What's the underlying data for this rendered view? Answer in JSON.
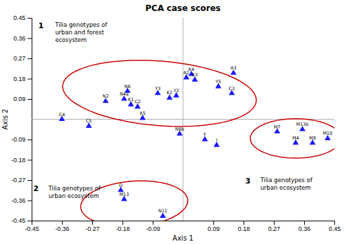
{
  "chart_data": {
    "type": "scatter",
    "title": "PCA case scores",
    "x_label": "Axis 1",
    "y_label": "Axis 2",
    "xlim": [
      -0.45,
      0.45
    ],
    "ylim": [
      -0.45,
      0.45
    ],
    "xticks": [
      -0.45,
      -0.36,
      -0.27,
      -0.18,
      -0.09,
      0.09,
      0.18,
      0.27,
      0.36,
      0.45
    ],
    "yticks": [
      -0.45,
      -0.36,
      -0.27,
      -0.18,
      -0.09,
      0.09,
      0.18,
      0.27,
      0.36,
      0.45
    ],
    "series": [
      {
        "color": "#1a1aff",
        "marker": "triangle",
        "labels": [
          "C4",
          "C5",
          "N2",
          "N4a",
          "N6",
          "K1",
          "C2",
          "K5",
          "Y3",
          "K2",
          "Y2",
          "A2",
          "K4",
          "K3",
          "A3",
          "Y5",
          "C3",
          "N6b",
          "F",
          "O",
          "M13",
          "N11",
          "I",
          "M7",
          "M13b",
          "M4",
          "M8",
          "M10"
        ],
        "x": [
          -0.36,
          -0.28,
          -0.23,
          -0.175,
          -0.165,
          -0.155,
          -0.135,
          -0.12,
          -0.075,
          -0.04,
          -0.02,
          0.01,
          0.025,
          0.035,
          0.15,
          0.105,
          0.145,
          -0.01,
          0.065,
          -0.185,
          -0.175,
          -0.06,
          0.1,
          0.28,
          0.355,
          0.335,
          0.385,
          0.43
        ],
        "values": [
          0.0,
          -0.03,
          0.08,
          0.09,
          0.125,
          0.065,
          0.055,
          0.005,
          0.115,
          0.095,
          0.105,
          0.185,
          0.2,
          0.175,
          0.205,
          0.145,
          0.115,
          -0.065,
          -0.09,
          -0.315,
          -0.355,
          -0.43,
          -0.115,
          -0.055,
          -0.045,
          -0.105,
          -0.105,
          -0.085
        ]
      }
    ],
    "ellipses": {
      "color": "#cc0000",
      "shapes": [
        {
          "cx": -0.07,
          "cy": 0.115,
          "width": 0.58,
          "height": 0.285,
          "angle": -8
        },
        {
          "cx": -0.145,
          "cy": -0.375,
          "width": 0.32,
          "height": 0.2,
          "angle": 8
        },
        {
          "cx": 0.335,
          "cy": -0.085,
          "width": 0.27,
          "height": 0.175,
          "angle": 0
        }
      ]
    },
    "annotations": [
      {
        "number": "1",
        "number_x": -0.43,
        "number_y": 0.43,
        "lines": [
          "Tilia genotypes of",
          "urban and forest",
          "ecosystem"
        ],
        "x": -0.38,
        "y": 0.43
      },
      {
        "number": "2",
        "number_x": -0.445,
        "number_y": -0.295,
        "lines": [
          "Tilia genotypes of",
          "urban ecosystem"
        ],
        "x": -0.4,
        "y": -0.295
      },
      {
        "number": "3",
        "number_x": 0.185,
        "number_y": -0.26,
        "lines": [
          "Tilia genotypes of",
          "urban ecosystem"
        ],
        "x": 0.23,
        "y": -0.26
      }
    ]
  }
}
